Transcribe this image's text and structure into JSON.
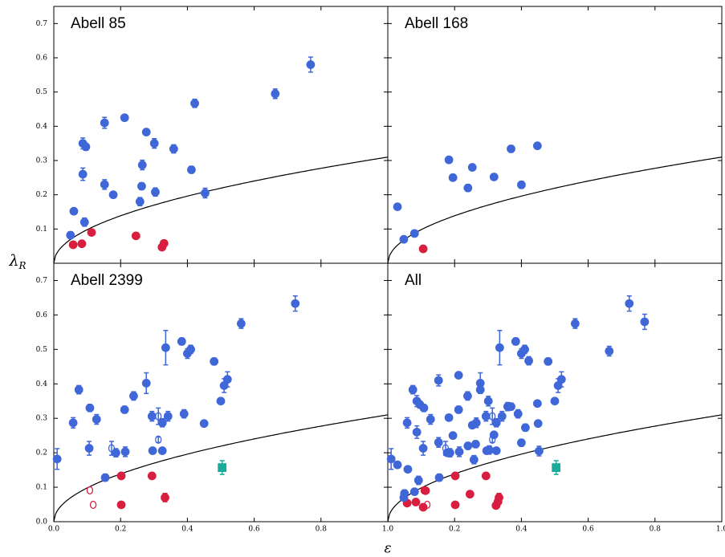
{
  "xlabel": "ε",
  "ylabel": {
    "symbol": "λ",
    "subscript": "R"
  },
  "chart_data": [
    {
      "type": "scatter",
      "title": "Abell 85",
      "xlim": [
        0,
        1
      ],
      "ylim": [
        0,
        0.75
      ],
      "yticks": [
        0.1,
        0.2,
        0.3,
        0.4,
        0.5,
        0.6,
        0.7
      ],
      "show_ytick_labels": true,
      "xticks": [
        {
          "value": 0,
          "label": "0.0"
        },
        0.2,
        0.4,
        0.6,
        0.8,
        {
          "value": 1,
          "label": "1.0"
        }
      ],
      "show_xtick_labels": false,
      "curve_k": 0.31,
      "series": [
        {
          "color": "#3f67d8",
          "marker": "circle",
          "filled": true,
          "x": [
            0.05,
            0.06,
            0.092,
            0.087,
            0.087,
            0.096,
            0.152,
            0.152,
            0.178,
            0.212,
            0.258,
            0.263,
            0.265,
            0.277,
            0.304,
            0.301,
            0.359,
            0.412,
            0.422,
            0.453,
            0.663,
            0.769
          ],
          "values": [
            0.082,
            0.152,
            0.12,
            0.26,
            0.35,
            0.34,
            0.23,
            0.41,
            0.2,
            0.425,
            0.18,
            0.225,
            0.287,
            0.383,
            0.208,
            0.35,
            0.334,
            0.273,
            0.467,
            0.205,
            0.495,
            0.58
          ],
          "errors": [
            0.01,
            0.008,
            0.012,
            0.018,
            0.016,
            0.01,
            0.014,
            0.016,
            0.008,
            0.008,
            0.012,
            0.01,
            0.014,
            0.008,
            0.012,
            0.014,
            0.012,
            0.01,
            0.012,
            0.014,
            0.014,
            0.022
          ]
        },
        {
          "color": "#d81f3f",
          "marker": "circle",
          "filled": true,
          "x": [
            0.058,
            0.084,
            0.113,
            0.246,
            0.324,
            0.33
          ],
          "values": [
            0.054,
            0.057,
            0.09,
            0.08,
            0.047,
            0.058
          ]
        }
      ]
    },
    {
      "type": "scatter",
      "title": "Abell 168",
      "xlim": [
        0,
        1
      ],
      "ylim": [
        0,
        0.75
      ],
      "yticks": [
        0.1,
        0.2,
        0.3,
        0.4,
        0.5,
        0.6,
        0.7
      ],
      "show_ytick_labels": false,
      "xticks": [
        0.2,
        0.4,
        0.6,
        0.8,
        {
          "value": 1,
          "label": "1.0"
        }
      ],
      "show_xtick_labels": false,
      "curve_k": 0.31,
      "series": [
        {
          "color": "#3f67d8",
          "marker": "circle",
          "filled": true,
          "x": [
            0.029,
            0.048,
            0.08,
            0.183,
            0.195,
            0.24,
            0.253,
            0.318,
            0.369,
            0.4,
            0.448
          ],
          "values": [
            0.165,
            0.07,
            0.087,
            0.302,
            0.25,
            0.22,
            0.28,
            0.252,
            0.334,
            0.229,
            0.343
          ],
          "errors": [
            0.006,
            0.005,
            0.005,
            0.006,
            0.006,
            0.01,
            0.008,
            0.006,
            0.01,
            0.01,
            0.008
          ]
        },
        {
          "color": "#d81f3f",
          "marker": "circle",
          "filled": true,
          "x": [
            0.106
          ],
          "values": [
            0.042
          ]
        }
      ]
    },
    {
      "type": "scatter",
      "title": "Abell 2399",
      "xlim": [
        0,
        1
      ],
      "ylim": [
        0,
        0.75
      ],
      "yticks": [
        {
          "value": 0,
          "label": "0.0"
        },
        0.1,
        0.2,
        0.3,
        0.4,
        0.5,
        0.6,
        0.7
      ],
      "show_ytick_labels": true,
      "xticks": [
        {
          "value": 0,
          "label": "0.0"
        },
        0.2,
        0.4,
        0.6,
        0.8,
        {
          "value": 1,
          "label": "1.0"
        }
      ],
      "show_xtick_labels": true,
      "curve_k": 0.31,
      "series": [
        {
          "color": "#3f67d8",
          "marker": "circle",
          "filled": true,
          "x": [
            0.01,
            0.058,
            0.075,
            0.108,
            0.106,
            0.128,
            0.154,
            0.186,
            0.212,
            0.214,
            0.239,
            0.277,
            0.294,
            0.296,
            0.325,
            0.335,
            0.342,
            0.325,
            0.383,
            0.39,
            0.4,
            0.41,
            0.45,
            0.48,
            0.5,
            0.51,
            0.52,
            0.561,
            0.723
          ],
          "values": [
            0.182,
            0.287,
            0.383,
            0.33,
            0.213,
            0.297,
            0.128,
            0.2,
            0.325,
            0.203,
            0.365,
            0.402,
            0.306,
            0.206,
            0.287,
            0.505,
            0.306,
            0.206,
            0.523,
            0.313,
            0.488,
            0.5,
            0.285,
            0.465,
            0.35,
            0.395,
            0.413,
            0.575,
            0.633
          ],
          "errors": [
            0.03,
            0.015,
            0.012,
            0.01,
            0.02,
            0.014,
            0.01,
            0.012,
            0.01,
            0.014,
            0.012,
            0.03,
            0.014,
            0.006,
            0.012,
            0.05,
            0.014,
            0.006,
            0.01,
            0.012,
            0.014,
            0.012,
            0.006,
            0.01,
            0.006,
            0.02,
            0.022,
            0.014,
            0.022
          ]
        },
        {
          "color": "#3f67d8",
          "marker": "circle",
          "filled": false,
          "x": [
            0.173,
            0.313,
            0.313
          ],
          "values": [
            0.213,
            0.306,
            0.238
          ],
          "errors": [
            0.02,
            0.024,
            0.008
          ]
        },
        {
          "color": "#d81f3f",
          "marker": "circle",
          "filled": true,
          "x": [
            0.202,
            0.202,
            0.294,
            0.333
          ],
          "values": [
            0.133,
            0.049,
            0.133,
            0.07
          ],
          "errors": [
            0.008,
            0.006,
            0.006,
            0.012
          ]
        },
        {
          "color": "#d81f3f",
          "marker": "circle",
          "filled": false,
          "x": [
            0.108,
            0.118
          ],
          "values": [
            0.091,
            0.049
          ]
        },
        {
          "color": "#1aab9b",
          "marker": "square",
          "filled": true,
          "x": [
            0.504
          ],
          "values": [
            0.157
          ],
          "errors": [
            0.02
          ]
        }
      ]
    },
    {
      "type": "scatter",
      "title": "All",
      "xlim": [
        0,
        1
      ],
      "ylim": [
        0,
        0.75
      ],
      "yticks": [
        0,
        0.1,
        0.2,
        0.3,
        0.4,
        0.5,
        0.6,
        0.7
      ],
      "show_ytick_labels": false,
      "xticks": [
        0.2,
        0.4,
        0.6,
        0.8,
        {
          "value": 1,
          "label": "1.0"
        }
      ],
      "show_xtick_labels": true,
      "curve_k": 0.31,
      "includes": [
        0,
        1,
        2
      ]
    }
  ]
}
